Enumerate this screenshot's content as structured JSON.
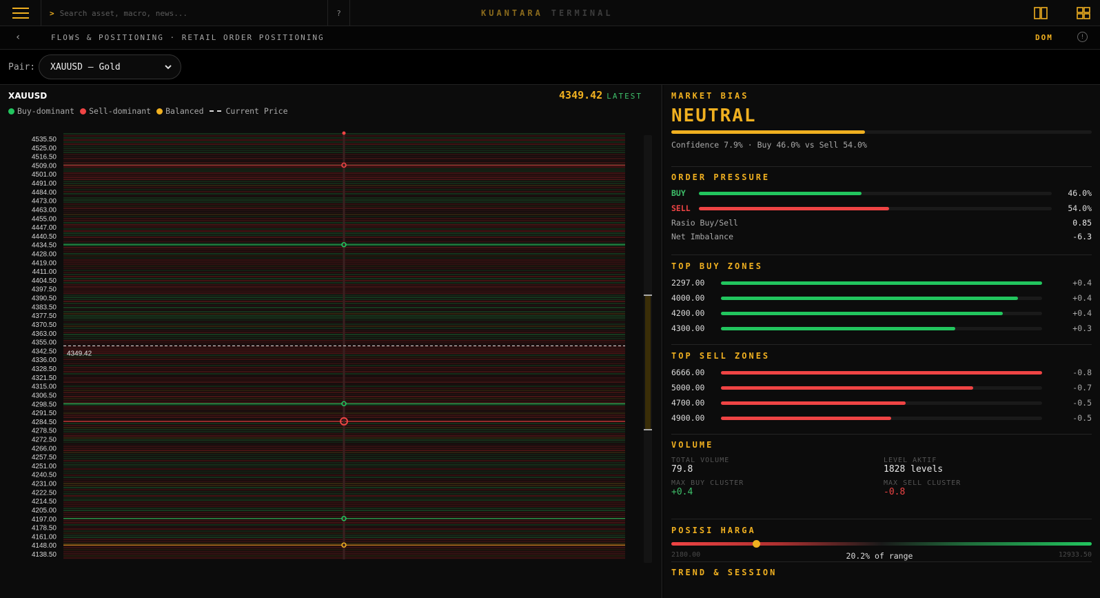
{
  "topbar": {
    "search_prompt": ">",
    "search_placeholder": "Search asset, macro, news...",
    "help_label": "?",
    "brand_primary": "KUANTARA",
    "brand_secondary": "TERMINAL"
  },
  "breadcrumb": {
    "back": "‹",
    "path": "FLOWS & POSITIONING · RETAIL ORDER POSITIONING",
    "dom_label": "DOM",
    "info_label": "!"
  },
  "pair": {
    "label": "Pair:",
    "selected": "XAUUSD — Gold"
  },
  "chart": {
    "symbol": "XAUUSD",
    "price": "4349.42",
    "price_tag": "LATEST",
    "legend": {
      "buy": "Buy-dominant",
      "sell": "Sell-dominant",
      "balanced": "Balanced",
      "current": "Current Price"
    },
    "colors": {
      "buy": "#22c55e",
      "sell": "#ef4444",
      "balanced": "#f0b020"
    }
  },
  "chart_data": {
    "type": "heatmap",
    "title": "XAUUSD",
    "current_price": 4349.42,
    "y_ticks": [
      4535.5,
      4525.0,
      4516.5,
      4509.0,
      4501.0,
      4491.0,
      4484.0,
      4473.0,
      4463.0,
      4455.0,
      4447.0,
      4440.5,
      4434.5,
      4428.0,
      4419.0,
      4411.0,
      4404.5,
      4397.5,
      4390.5,
      4383.5,
      4377.5,
      4370.5,
      4363.0,
      4355.0,
      4342.5,
      4336.0,
      4328.5,
      4321.5,
      4315.0,
      4306.5,
      4298.5,
      4291.5,
      4284.5,
      4278.5,
      4272.5,
      4266.0,
      4257.5,
      4251.0,
      4240.5,
      4231.0,
      4222.5,
      4214.5,
      4205.0,
      4197.0,
      4178.5,
      4161.0,
      4148.0,
      4138.5
    ],
    "highlighted_levels": [
      {
        "price": 4509.0,
        "side": "sell"
      },
      {
        "price": 4434.5,
        "side": "buy"
      },
      {
        "price": 4298.5,
        "side": "buy"
      },
      {
        "price": 4284.5,
        "side": "sell"
      },
      {
        "price": 4197.0,
        "side": "buy"
      },
      {
        "price": 4148.0,
        "side": "balanced"
      }
    ]
  },
  "bias": {
    "title": "MARKET BIAS",
    "value": "NEUTRAL",
    "gauge": 0.46,
    "confidence_text": "Confidence 7.9% · Buy 46.0% vs Sell 54.0%"
  },
  "pressure": {
    "title": "ORDER PRESSURE",
    "buy_label": "BUY",
    "buy_value": "46.0%",
    "buy_frac": 0.46,
    "sell_label": "SELL",
    "sell_value": "54.0%",
    "sell_frac": 0.54,
    "ratio_label": "Rasio Buy/Sell",
    "ratio_value": "0.85",
    "imbalance_label": "Net Imbalance",
    "imbalance_value": "-6.3"
  },
  "buy_zones": {
    "title": "TOP BUY ZONES",
    "items": [
      {
        "price": "2297.00",
        "value": "+0.4",
        "frac": 1.0
      },
      {
        "price": "4000.00",
        "value": "+0.4",
        "frac": 0.925
      },
      {
        "price": "4200.00",
        "value": "+0.4",
        "frac": 0.878
      },
      {
        "price": "4300.00",
        "value": "+0.3",
        "frac": 0.73
      }
    ]
  },
  "sell_zones": {
    "title": "TOP SELL ZONES",
    "items": [
      {
        "price": "6666.00",
        "value": "-0.8",
        "frac": 1.0
      },
      {
        "price": "5000.00",
        "value": "-0.7",
        "frac": 0.785
      },
      {
        "price": "4700.00",
        "value": "-0.5",
        "frac": 0.575
      },
      {
        "price": "4900.00",
        "value": "-0.5",
        "frac": 0.53
      }
    ]
  },
  "volume": {
    "title": "VOLUME",
    "total_label": "TOTAL VOLUME",
    "total_value": "79.8",
    "levels_label": "LEVEL AKTIF",
    "levels_value": "1828 levels",
    "max_buy_label": "MAX BUY CLUSTER",
    "max_buy_value": "+0.4",
    "max_sell_label": "MAX SELL CLUSTER",
    "max_sell_value": "-0.8"
  },
  "position": {
    "title": "POSISI HARGA",
    "low": "2180.00",
    "high": "12933.50",
    "pct_text": "20.2% of range",
    "frac": 0.202
  },
  "trend": {
    "title": "TREND & SESSION"
  }
}
